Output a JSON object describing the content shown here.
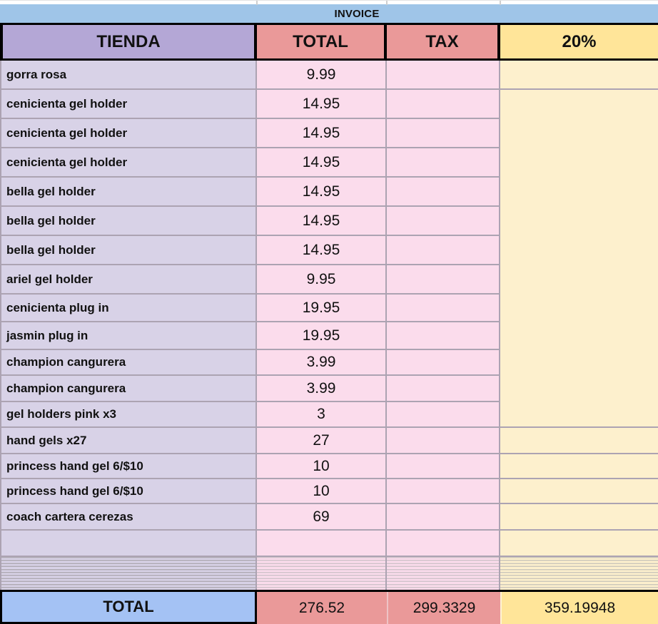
{
  "banner": {
    "title": "INVOICE"
  },
  "header": {
    "tienda": "TIENDA",
    "total": "TOTAL",
    "tax": "TAX",
    "pct": "20%"
  },
  "rows": [
    {
      "name": "gorra rosa",
      "total": "9.99",
      "tax": "",
      "pct": ""
    },
    {
      "name": "cenicienta gel holder",
      "total": "14.95",
      "tax": "",
      "pct": ""
    },
    {
      "name": "cenicienta gel holder",
      "total": "14.95",
      "tax": "",
      "pct": ""
    },
    {
      "name": "cenicienta gel holder",
      "total": "14.95",
      "tax": "",
      "pct": ""
    },
    {
      "name": "bella gel holder",
      "total": "14.95",
      "tax": "",
      "pct": ""
    },
    {
      "name": "bella gel holder",
      "total": "14.95",
      "tax": "",
      "pct": ""
    },
    {
      "name": "bella gel holder",
      "total": "14.95",
      "tax": "",
      "pct": ""
    },
    {
      "name": "ariel gel holder",
      "total": "9.95",
      "tax": "",
      "pct": ""
    },
    {
      "name": "cenicienta plug in",
      "total": "19.95",
      "tax": "",
      "pct": ""
    },
    {
      "name": "jasmin plug in",
      "total": "19.95",
      "tax": "",
      "pct": ""
    },
    {
      "name": "champion cangurera",
      "total": "3.99",
      "tax": "",
      "pct": ""
    },
    {
      "name": "champion cangurera",
      "total": "3.99",
      "tax": "",
      "pct": ""
    },
    {
      "name": "gel holders pink x3",
      "total": "3",
      "tax": "",
      "pct": ""
    },
    {
      "name": "hand gels x27",
      "total": "27",
      "tax": "",
      "pct": ""
    },
    {
      "name": "princess hand gel 6/$10",
      "total": "10",
      "tax": "",
      "pct": ""
    },
    {
      "name": "princess hand gel 6/$10",
      "total": "10",
      "tax": "",
      "pct": ""
    },
    {
      "name": "coach cartera cerezas",
      "total": "69",
      "tax": "",
      "pct": ""
    },
    {
      "name": "",
      "total": "",
      "tax": "",
      "pct": ""
    }
  ],
  "merged_pct_cell_value": "",
  "footer": {
    "label": "TOTAL",
    "total": "276.52",
    "tax": "299.3329",
    "pct": "359.19948"
  },
  "colors": {
    "banner_blue": "#9fc5e8",
    "header_purple": "#b4a7d6",
    "header_red": "#ea9999",
    "header_yellow": "#ffe599",
    "cell_purple": "#d8d2e7",
    "cell_pink": "#fbdcec",
    "cell_yellow": "#fdf0cd",
    "footer_blue": "#a4c2f4",
    "grid_line": "#aca3b2",
    "border_black": "#000000"
  }
}
